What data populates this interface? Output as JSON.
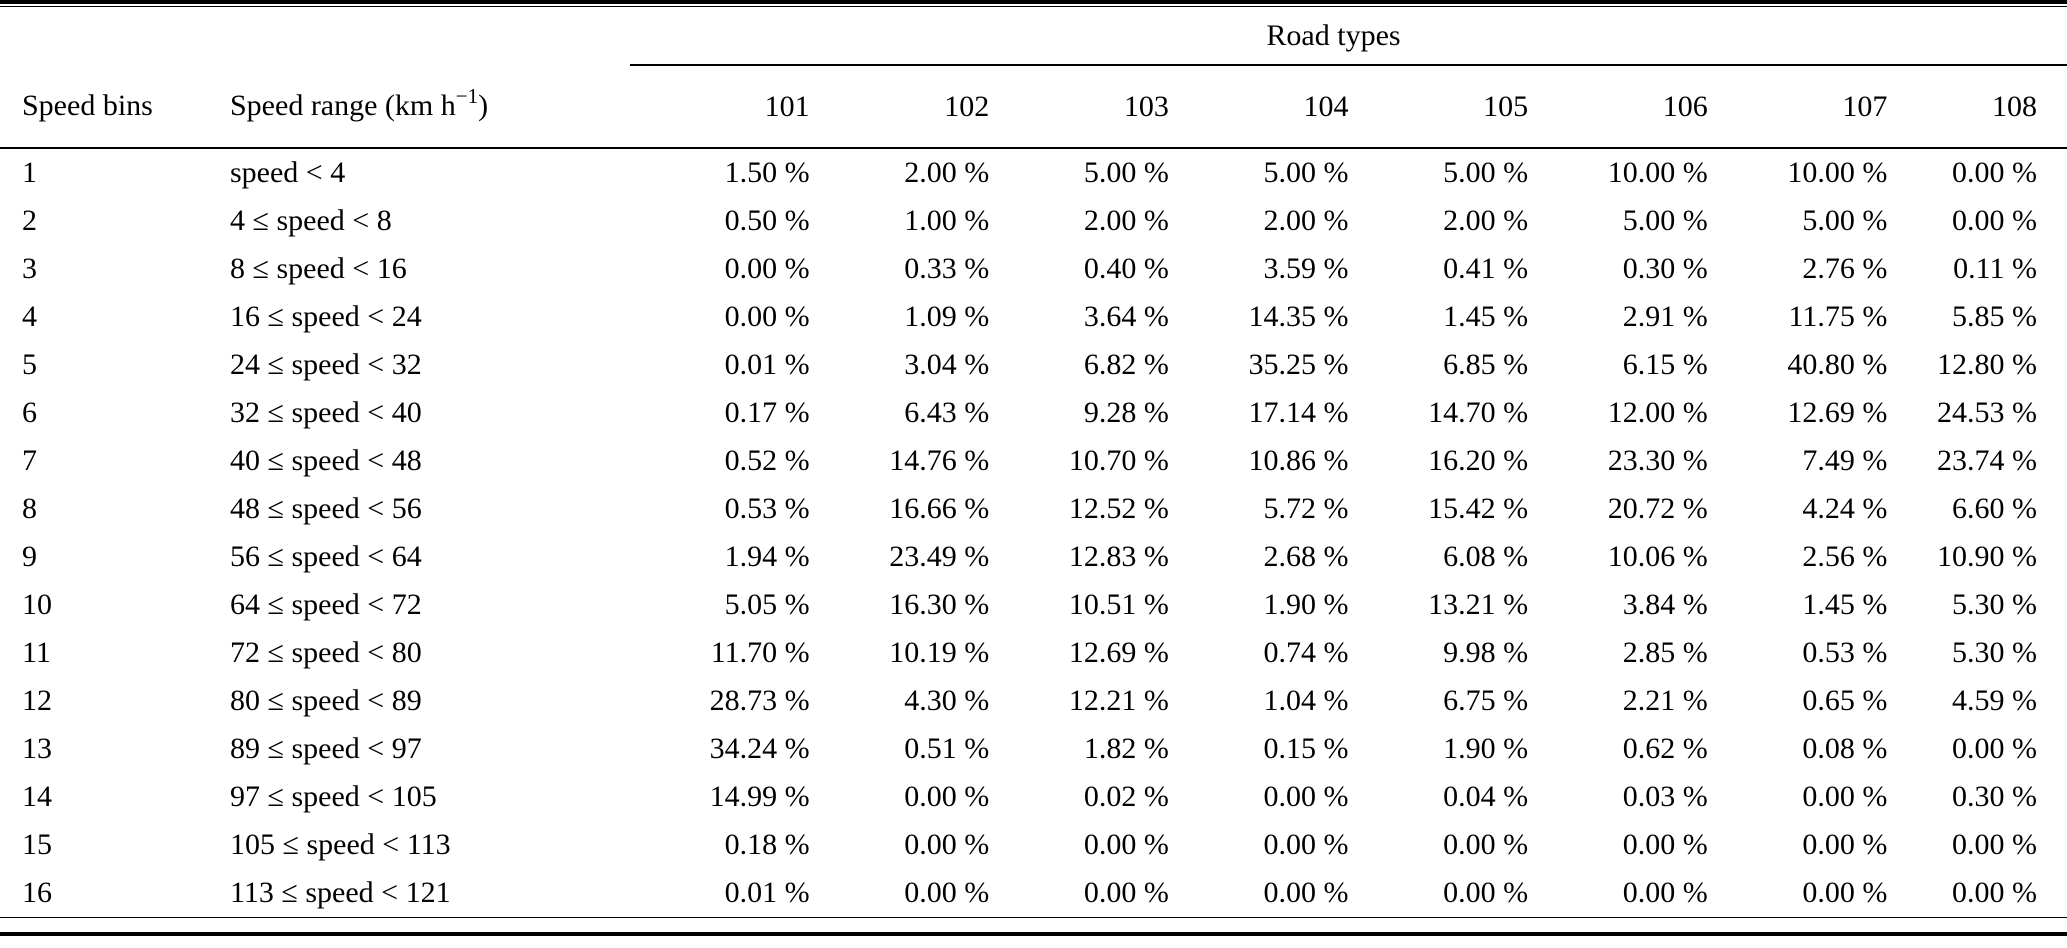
{
  "page": {
    "background_color": "#ffffff",
    "text_color": "#000000"
  },
  "table": {
    "group_header": "Road types",
    "columns": {
      "speed_bins": "Speed bins",
      "speed_range": {
        "prefix": "Speed range (km h",
        "sup": "−1",
        "suffix": ")"
      },
      "road_types": [
        "101",
        "102",
        "103",
        "104",
        "105",
        "106",
        "107",
        "108"
      ]
    },
    "rows": [
      {
        "bin": "1",
        "range": "speed < 4",
        "values": [
          "1.50 %",
          "2.00 %",
          "5.00 %",
          "5.00 %",
          "5.00 %",
          "10.00 %",
          "10.00 %",
          "0.00 %"
        ]
      },
      {
        "bin": "2",
        "range": "4 ≤ speed < 8",
        "values": [
          "0.50 %",
          "1.00 %",
          "2.00 %",
          "2.00 %",
          "2.00 %",
          "5.00 %",
          "5.00 %",
          "0.00 %"
        ]
      },
      {
        "bin": "3",
        "range": "8 ≤ speed < 16",
        "values": [
          "0.00 %",
          "0.33 %",
          "0.40 %",
          "3.59 %",
          "0.41 %",
          "0.30 %",
          "2.76 %",
          "0.11 %"
        ]
      },
      {
        "bin": "4",
        "range": "16 ≤ speed < 24",
        "values": [
          "0.00 %",
          "1.09 %",
          "3.64 %",
          "14.35 %",
          "1.45 %",
          "2.91 %",
          "11.75 %",
          "5.85 %"
        ]
      },
      {
        "bin": "5",
        "range": "24 ≤ speed < 32",
        "values": [
          "0.01 %",
          "3.04 %",
          "6.82 %",
          "35.25 %",
          "6.85 %",
          "6.15 %",
          "40.80 %",
          "12.80 %"
        ]
      },
      {
        "bin": "6",
        "range": "32 ≤ speed < 40",
        "values": [
          "0.17 %",
          "6.43 %",
          "9.28 %",
          "17.14 %",
          "14.70 %",
          "12.00 %",
          "12.69 %",
          "24.53 %"
        ]
      },
      {
        "bin": "7",
        "range": "40 ≤ speed < 48",
        "values": [
          "0.52 %",
          "14.76 %",
          "10.70 %",
          "10.86 %",
          "16.20 %",
          "23.30 %",
          "7.49 %",
          "23.74 %"
        ]
      },
      {
        "bin": "8",
        "range": "48 ≤ speed < 56",
        "values": [
          "0.53 %",
          "16.66 %",
          "12.52 %",
          "5.72 %",
          "15.42 %",
          "20.72 %",
          "4.24 %",
          "6.60 %"
        ]
      },
      {
        "bin": "9",
        "range": "56 ≤ speed < 64",
        "values": [
          "1.94 %",
          "23.49 %",
          "12.83 %",
          "2.68 %",
          "6.08 %",
          "10.06 %",
          "2.56 %",
          "10.90 %"
        ]
      },
      {
        "bin": "10",
        "range": "64 ≤ speed < 72",
        "values": [
          "5.05 %",
          "16.30 %",
          "10.51 %",
          "1.90 %",
          "13.21 %",
          "3.84 %",
          "1.45 %",
          "5.30 %"
        ]
      },
      {
        "bin": "11",
        "range": "72 ≤ speed < 80",
        "values": [
          "11.70 %",
          "10.19 %",
          "12.69 %",
          "0.74 %",
          "9.98 %",
          "2.85 %",
          "0.53 %",
          "5.30 %"
        ]
      },
      {
        "bin": "12",
        "range": "80 ≤ speed < 89",
        "values": [
          "28.73 %",
          "4.30 %",
          "12.21 %",
          "1.04 %",
          "6.75 %",
          "2.21 %",
          "0.65 %",
          "4.59 %"
        ]
      },
      {
        "bin": "13",
        "range": "89 ≤ speed < 97",
        "values": [
          "34.24 %",
          "0.51 %",
          "1.82 %",
          "0.15 %",
          "1.90 %",
          "0.62 %",
          "0.08 %",
          "0.00 %"
        ]
      },
      {
        "bin": "14",
        "range": "97 ≤ speed < 105",
        "values": [
          "14.99 %",
          "0.00 %",
          "0.02 %",
          "0.00 %",
          "0.04 %",
          "0.03 %",
          "0.00 %",
          "0.30 %"
        ]
      },
      {
        "bin": "15",
        "range": "105 ≤ speed < 113",
        "values": [
          "0.18 %",
          "0.00 %",
          "0.00 %",
          "0.00 %",
          "0.00 %",
          "0.00 %",
          "0.00 %",
          "0.00 %"
        ]
      },
      {
        "bin": "16",
        "range": "113 ≤ speed < 121",
        "values": [
          "0.01 %",
          "0.00 %",
          "0.00 %",
          "0.00 %",
          "0.00 %",
          "0.00 %",
          "0.00 %",
          "0.00 %"
        ]
      }
    ]
  }
}
